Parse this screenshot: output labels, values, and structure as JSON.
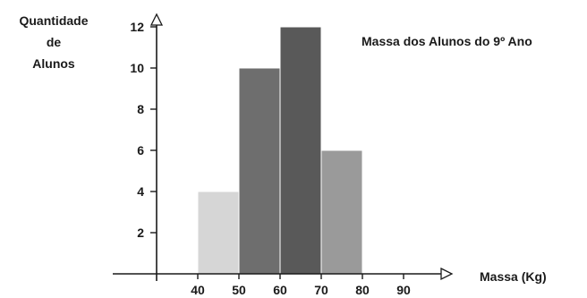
{
  "chart_data": {
    "type": "bar",
    "title": "Massa dos Alunos do 9º Ano",
    "ylabel": [
      "Quantidade",
      "de",
      "Alunos"
    ],
    "xlabel": "Massa (Kg)",
    "x_ticks": [
      40,
      50,
      60,
      70,
      80,
      90
    ],
    "y_ticks": [
      2,
      4,
      6,
      8,
      10,
      12
    ],
    "xlim": [
      30,
      100
    ],
    "ylim": [
      0,
      12.5
    ],
    "grid": false,
    "bins": [
      {
        "from": 40,
        "to": 50,
        "value": 4,
        "color": "#d6d6d6"
      },
      {
        "from": 50,
        "to": 60,
        "value": 10,
        "color": "#6e6e6e"
      },
      {
        "from": 60,
        "to": 70,
        "value": 12,
        "color": "#595959"
      },
      {
        "from": 70,
        "to": 80,
        "value": 6,
        "color": "#9a9a9a"
      }
    ]
  }
}
